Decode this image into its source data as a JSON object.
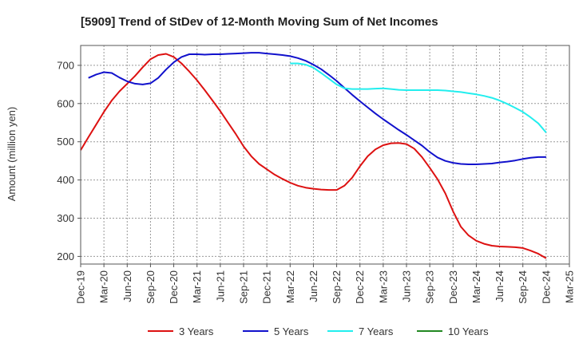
{
  "chart_data": {
    "type": "line",
    "title": "[5909]  Trend of StDev of 12-Month Moving Sum of Net Incomes",
    "xlabel": "",
    "ylabel": "Amount (million yen)",
    "x_ticks": [
      "Dec-19",
      "Mar-20",
      "Jun-20",
      "Sep-20",
      "Dec-20",
      "Mar-21",
      "Jun-21",
      "Sep-21",
      "Dec-21",
      "Mar-22",
      "Jun-22",
      "Sep-22",
      "Dec-22",
      "Mar-23",
      "Jun-23",
      "Sep-23",
      "Dec-23",
      "Mar-24",
      "Jun-24",
      "Sep-24",
      "Dec-24",
      "Mar-25"
    ],
    "x_range": [
      "2019-12",
      "2025-03"
    ],
    "y_ticks": [
      200,
      300,
      400,
      500,
      600,
      700
    ],
    "ylim": [
      180,
      752
    ],
    "grid": true,
    "legend_position": "bottom",
    "series": [
      {
        "name": "3 Years",
        "color": "#dd1111",
        "points": [
          [
            "2019-12",
            478
          ],
          [
            "2020-01",
            512
          ],
          [
            "2020-02",
            545
          ],
          [
            "2020-03",
            578
          ],
          [
            "2020-04",
            608
          ],
          [
            "2020-05",
            632
          ],
          [
            "2020-06",
            652
          ],
          [
            "2020-07",
            672
          ],
          [
            "2020-08",
            695
          ],
          [
            "2020-09",
            716
          ],
          [
            "2020-10",
            727
          ],
          [
            "2020-11",
            730
          ],
          [
            "2020-12",
            722
          ],
          [
            "2021-01",
            705
          ],
          [
            "2021-02",
            684
          ],
          [
            "2021-03",
            661
          ],
          [
            "2021-04",
            635
          ],
          [
            "2021-05",
            608
          ],
          [
            "2021-06",
            580
          ],
          [
            "2021-07",
            550
          ],
          [
            "2021-08",
            520
          ],
          [
            "2021-09",
            488
          ],
          [
            "2021-10",
            462
          ],
          [
            "2021-11",
            442
          ],
          [
            "2021-12",
            428
          ],
          [
            "2022-01",
            414
          ],
          [
            "2022-02",
            403
          ],
          [
            "2022-03",
            393
          ],
          [
            "2022-04",
            385
          ],
          [
            "2022-05",
            380
          ],
          [
            "2022-06",
            377
          ],
          [
            "2022-07",
            375
          ],
          [
            "2022-08",
            374
          ],
          [
            "2022-09",
            374
          ],
          [
            "2022-10",
            385
          ],
          [
            "2022-11",
            406
          ],
          [
            "2022-12",
            436
          ],
          [
            "2023-01",
            462
          ],
          [
            "2023-02",
            480
          ],
          [
            "2023-03",
            491
          ],
          [
            "2023-04",
            496
          ],
          [
            "2023-05",
            497
          ],
          [
            "2023-06",
            494
          ],
          [
            "2023-07",
            482
          ],
          [
            "2023-08",
            460
          ],
          [
            "2023-09",
            432
          ],
          [
            "2023-10",
            402
          ],
          [
            "2023-11",
            365
          ],
          [
            "2023-12",
            318
          ],
          [
            "2024-01",
            278
          ],
          [
            "2024-02",
            255
          ],
          [
            "2024-03",
            241
          ],
          [
            "2024-04",
            233
          ],
          [
            "2024-05",
            228
          ],
          [
            "2024-06",
            226
          ],
          [
            "2024-07",
            225
          ],
          [
            "2024-08",
            224
          ],
          [
            "2024-09",
            222
          ],
          [
            "2024-10",
            215
          ],
          [
            "2024-11",
            207
          ],
          [
            "2024-12",
            195
          ]
        ]
      },
      {
        "name": "5 Years",
        "color": "#1111cc",
        "points": [
          [
            "2020-01",
            667
          ],
          [
            "2020-02",
            676
          ],
          [
            "2020-03",
            682
          ],
          [
            "2020-04",
            680
          ],
          [
            "2020-05",
            668
          ],
          [
            "2020-06",
            658
          ],
          [
            "2020-07",
            652
          ],
          [
            "2020-08",
            650
          ],
          [
            "2020-09",
            653
          ],
          [
            "2020-10",
            667
          ],
          [
            "2020-11",
            689
          ],
          [
            "2020-12",
            708
          ],
          [
            "2021-01",
            722
          ],
          [
            "2021-02",
            729
          ],
          [
            "2021-03",
            729
          ],
          [
            "2021-04",
            728
          ],
          [
            "2021-05",
            729
          ],
          [
            "2021-06",
            729
          ],
          [
            "2021-07",
            730
          ],
          [
            "2021-08",
            731
          ],
          [
            "2021-09",
            732
          ],
          [
            "2021-10",
            733
          ],
          [
            "2021-11",
            733
          ],
          [
            "2021-12",
            731
          ],
          [
            "2022-01",
            729
          ],
          [
            "2022-02",
            727
          ],
          [
            "2022-03",
            724
          ],
          [
            "2022-04",
            719
          ],
          [
            "2022-05",
            712
          ],
          [
            "2022-06",
            702
          ],
          [
            "2022-07",
            690
          ],
          [
            "2022-08",
            675
          ],
          [
            "2022-09",
            659
          ],
          [
            "2022-10",
            641
          ],
          [
            "2022-11",
            623
          ],
          [
            "2022-12",
            606
          ],
          [
            "2023-01",
            590
          ],
          [
            "2023-02",
            574
          ],
          [
            "2023-03",
            559
          ],
          [
            "2023-04",
            545
          ],
          [
            "2023-05",
            531
          ],
          [
            "2023-06",
            518
          ],
          [
            "2023-07",
            504
          ],
          [
            "2023-08",
            490
          ],
          [
            "2023-09",
            473
          ],
          [
            "2023-10",
            459
          ],
          [
            "2023-11",
            450
          ],
          [
            "2023-12",
            445
          ],
          [
            "2024-01",
            442
          ],
          [
            "2024-02",
            441
          ],
          [
            "2024-03",
            441
          ],
          [
            "2024-04",
            442
          ],
          [
            "2024-05",
            443
          ],
          [
            "2024-06",
            446
          ],
          [
            "2024-07",
            448
          ],
          [
            "2024-08",
            451
          ],
          [
            "2024-09",
            455
          ],
          [
            "2024-10",
            458
          ],
          [
            "2024-11",
            460
          ],
          [
            "2024-12",
            460
          ]
        ]
      },
      {
        "name": "7 Years",
        "color": "#22eeee",
        "points": [
          [
            "2022-03",
            705
          ],
          [
            "2022-04",
            705
          ],
          [
            "2022-05",
            702
          ],
          [
            "2022-06",
            694
          ],
          [
            "2022-07",
            680
          ],
          [
            "2022-08",
            665
          ],
          [
            "2022-09",
            650
          ],
          [
            "2022-10",
            640
          ],
          [
            "2022-11",
            638
          ],
          [
            "2022-12",
            638
          ],
          [
            "2023-01",
            638
          ],
          [
            "2023-02",
            639
          ],
          [
            "2023-03",
            640
          ],
          [
            "2023-04",
            638
          ],
          [
            "2023-05",
            636
          ],
          [
            "2023-06",
            635
          ],
          [
            "2023-07",
            635
          ],
          [
            "2023-08",
            635
          ],
          [
            "2023-09",
            635
          ],
          [
            "2023-10",
            635
          ],
          [
            "2023-11",
            634
          ],
          [
            "2023-12",
            632
          ],
          [
            "2024-01",
            630
          ],
          [
            "2024-02",
            627
          ],
          [
            "2024-03",
            624
          ],
          [
            "2024-04",
            620
          ],
          [
            "2024-05",
            615
          ],
          [
            "2024-06",
            608
          ],
          [
            "2024-07",
            599
          ],
          [
            "2024-08",
            589
          ],
          [
            "2024-09",
            578
          ],
          [
            "2024-10",
            564
          ],
          [
            "2024-11",
            548
          ],
          [
            "2024-12",
            524
          ]
        ]
      },
      {
        "name": "10 Years",
        "color": "#228822",
        "points": []
      }
    ]
  }
}
